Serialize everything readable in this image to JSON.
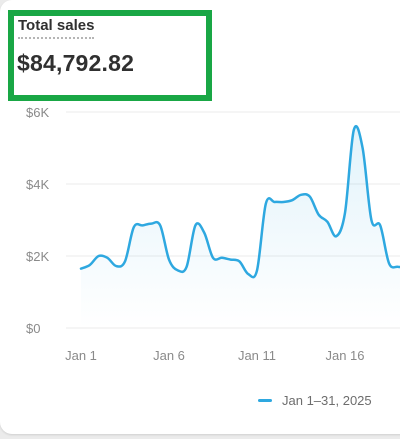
{
  "metric": {
    "title": "Total sales",
    "value": "$84,792.82"
  },
  "colors": {
    "highlight_border": "#19a745",
    "line": "#2ea8e0",
    "grid": "#ebebeb"
  },
  "chart_data": {
    "type": "line",
    "title": "",
    "xlabel": "",
    "ylabel": "",
    "ylim": [
      0,
      6000
    ],
    "y_ticks": [
      0,
      2000,
      4000,
      6000
    ],
    "y_tick_labels": [
      "$0",
      "$2K",
      "$4K",
      "$6K"
    ],
    "x_tick_labels": [
      "Jan 1",
      "Jan 6",
      "Jan 11",
      "Jan 16"
    ],
    "x_tick_days": [
      1,
      6,
      11,
      16
    ],
    "grid": true,
    "legend": "bottom",
    "series": [
      {
        "name": "Jan 1–31, 2025",
        "color": "#2ea8e0",
        "x": [
          1,
          1.5,
          2,
          2.5,
          3,
          3.5,
          4,
          4.5,
          5,
          5.5,
          6,
          6.5,
          7,
          7.5,
          8,
          8.5,
          9,
          9.5,
          10,
          10.5,
          11,
          11.5,
          12,
          12.5,
          13,
          13.5,
          14,
          14.5,
          15,
          15.5,
          16,
          16.5,
          17,
          17.5,
          18,
          18.5,
          19,
          19.5,
          20,
          20.5
        ],
        "y": [
          1650,
          1750,
          2000,
          1950,
          1720,
          1850,
          2800,
          2850,
          2900,
          2850,
          1900,
          1600,
          1700,
          2850,
          2650,
          1950,
          1950,
          1900,
          1850,
          1500,
          1600,
          3450,
          3500,
          3500,
          3550,
          3700,
          3650,
          3150,
          2950,
          2550,
          3200,
          5500,
          5000,
          3000,
          2850,
          1800,
          1700,
          1700,
          1700,
          1700
        ]
      }
    ]
  }
}
